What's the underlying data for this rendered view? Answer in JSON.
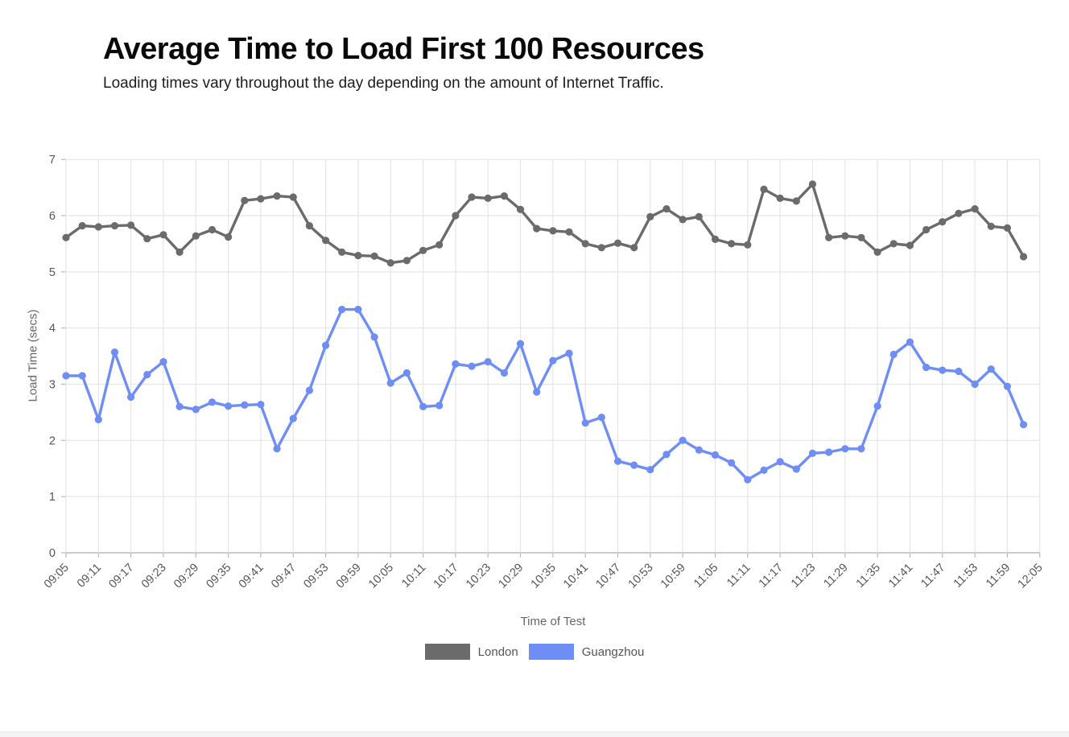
{
  "header": {
    "title": "Average Time to Load First 100 Resources",
    "subtitle": "Loading times vary throughout the day depending on the amount of Internet Traffic."
  },
  "chart_data": {
    "type": "line",
    "title": "Average Time to Load First 100 Resources",
    "xlabel": "Time of Test",
    "ylabel": "Load Time (secs)",
    "ylim": [
      0,
      7
    ],
    "y_ticks": [
      0,
      1,
      2,
      3,
      4,
      5,
      6,
      7
    ],
    "grid": true,
    "legend_position": "bottom",
    "x_tick_labels": [
      "09:05",
      "09:11",
      "09:17",
      "09:23",
      "09:29",
      "09:35",
      "09:41",
      "09:47",
      "09:53",
      "09:59",
      "10:05",
      "10:11",
      "10:17",
      "10:23",
      "10:29",
      "10:35",
      "10:41",
      "10:47",
      "10:53",
      "10:59",
      "11:05",
      "11:11",
      "11:17",
      "11:23",
      "11:29",
      "11:35",
      "11:41",
      "11:47",
      "11:53",
      "11:59",
      "12:05"
    ],
    "x": [
      "09:05",
      "09:08",
      "09:11",
      "09:14",
      "09:17",
      "09:20",
      "09:23",
      "09:26",
      "09:29",
      "09:32",
      "09:35",
      "09:38",
      "09:41",
      "09:44",
      "09:47",
      "09:50",
      "09:53",
      "09:56",
      "09:59",
      "10:02",
      "10:05",
      "10:08",
      "10:11",
      "10:14",
      "10:17",
      "10:20",
      "10:23",
      "10:26",
      "10:29",
      "10:32",
      "10:35",
      "10:38",
      "10:41",
      "10:44",
      "10:47",
      "10:50",
      "10:53",
      "10:56",
      "10:59",
      "11:02",
      "11:05",
      "11:08",
      "11:11",
      "11:14",
      "11:17",
      "11:20",
      "11:23",
      "11:26",
      "11:29",
      "11:32",
      "11:35",
      "11:38",
      "11:41",
      "11:44",
      "11:47",
      "11:50",
      "11:53",
      "11:56",
      "11:59",
      "12:02"
    ],
    "series": [
      {
        "name": "London",
        "color": "#6b6b6b",
        "values": [
          5.61,
          5.82,
          5.8,
          5.82,
          5.83,
          5.59,
          5.66,
          5.35,
          5.64,
          5.75,
          5.62,
          6.27,
          6.3,
          6.35,
          6.33,
          5.82,
          5.56,
          5.35,
          5.29,
          5.28,
          5.16,
          5.2,
          5.38,
          5.48,
          6.0,
          6.33,
          6.31,
          6.35,
          6.11,
          5.77,
          5.73,
          5.71,
          5.5,
          5.43,
          5.51,
          5.43,
          5.98,
          6.12,
          5.93,
          5.98,
          5.58,
          5.5,
          5.48,
          6.47,
          6.31,
          6.26,
          6.56,
          5.61,
          5.64,
          5.61,
          5.35,
          5.5,
          5.47,
          5.75,
          5.89,
          6.04,
          6.12,
          5.81,
          5.78,
          5.27
        ]
      },
      {
        "name": "Guangzhou",
        "color": "#6e8ef5",
        "values": [
          3.15,
          3.15,
          2.37,
          3.57,
          2.77,
          3.17,
          3.4,
          2.6,
          2.55,
          2.68,
          2.61,
          2.63,
          2.64,
          1.85,
          2.39,
          2.89,
          3.69,
          4.33,
          4.33,
          3.84,
          3.02,
          3.2,
          2.6,
          2.62,
          3.36,
          3.32,
          3.4,
          3.2,
          3.72,
          2.86,
          3.42,
          3.55,
          2.31,
          2.41,
          1.63,
          1.56,
          1.48,
          1.75,
          2.0,
          1.83,
          1.74,
          1.6,
          1.3,
          1.47,
          1.62,
          1.49,
          1.77,
          1.79,
          1.85,
          1.85,
          2.61,
          3.53,
          3.75,
          3.3,
          3.25,
          3.23,
          3.0,
          3.27,
          2.96,
          2.28
        ]
      }
    ]
  },
  "footer": {
    "bar_color": "#f4f4f6"
  }
}
